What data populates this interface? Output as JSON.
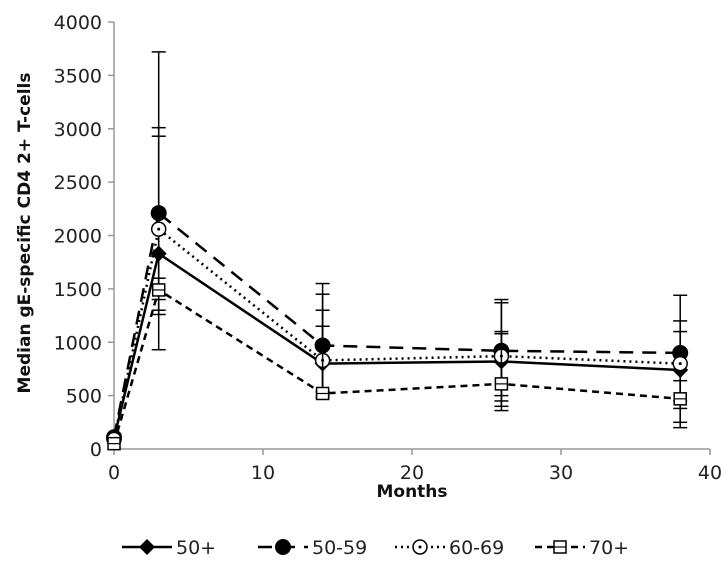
{
  "chart_data": {
    "type": "line",
    "title": "",
    "xlabel": "Months",
    "ylabel": "Median gE-specific CD4 2+ T-cells",
    "xlim": [
      0,
      40
    ],
    "ylim": [
      0,
      4000
    ],
    "xticks": [
      0,
      10,
      20,
      30,
      40
    ],
    "yticks": [
      0,
      500,
      1000,
      1500,
      2000,
      2500,
      3000,
      3500,
      4000
    ],
    "grid": false,
    "legend_position": "bottom",
    "x": [
      0,
      3,
      14,
      26,
      38
    ],
    "series": [
      {
        "name": "50+",
        "marker": "diamond-filled",
        "line": "solid",
        "values": [
          100,
          1830,
          800,
          820,
          740
        ],
        "err_low": [
          80,
          1260,
          500,
          400,
          250
        ],
        "err_high": [
          120,
          2930,
          1300,
          1100,
          1200
        ]
      },
      {
        "name": "50-59",
        "marker": "circle-filled",
        "line": "long-dash",
        "values": [
          110,
          2210,
          970,
          920,
          900
        ],
        "err_low": [
          90,
          1300,
          540,
          450,
          380
        ],
        "err_high": [
          130,
          3720,
          1550,
          1400,
          1440
        ]
      },
      {
        "name": "60-69",
        "marker": "circle-open",
        "line": "dotted",
        "values": [
          90,
          2060,
          830,
          870,
          800
        ],
        "err_low": [
          70,
          1400,
          530,
          500,
          450
        ],
        "err_high": [
          110,
          3010,
          1450,
          1370,
          1100
        ]
      },
      {
        "name": "70+",
        "marker": "square-open",
        "line": "short-dash",
        "values": [
          50,
          1490,
          520,
          610,
          470
        ],
        "err_low": [
          30,
          930,
          480,
          360,
          200
        ],
        "err_high": [
          70,
          1600,
          1150,
          1080,
          640
        ]
      }
    ]
  }
}
